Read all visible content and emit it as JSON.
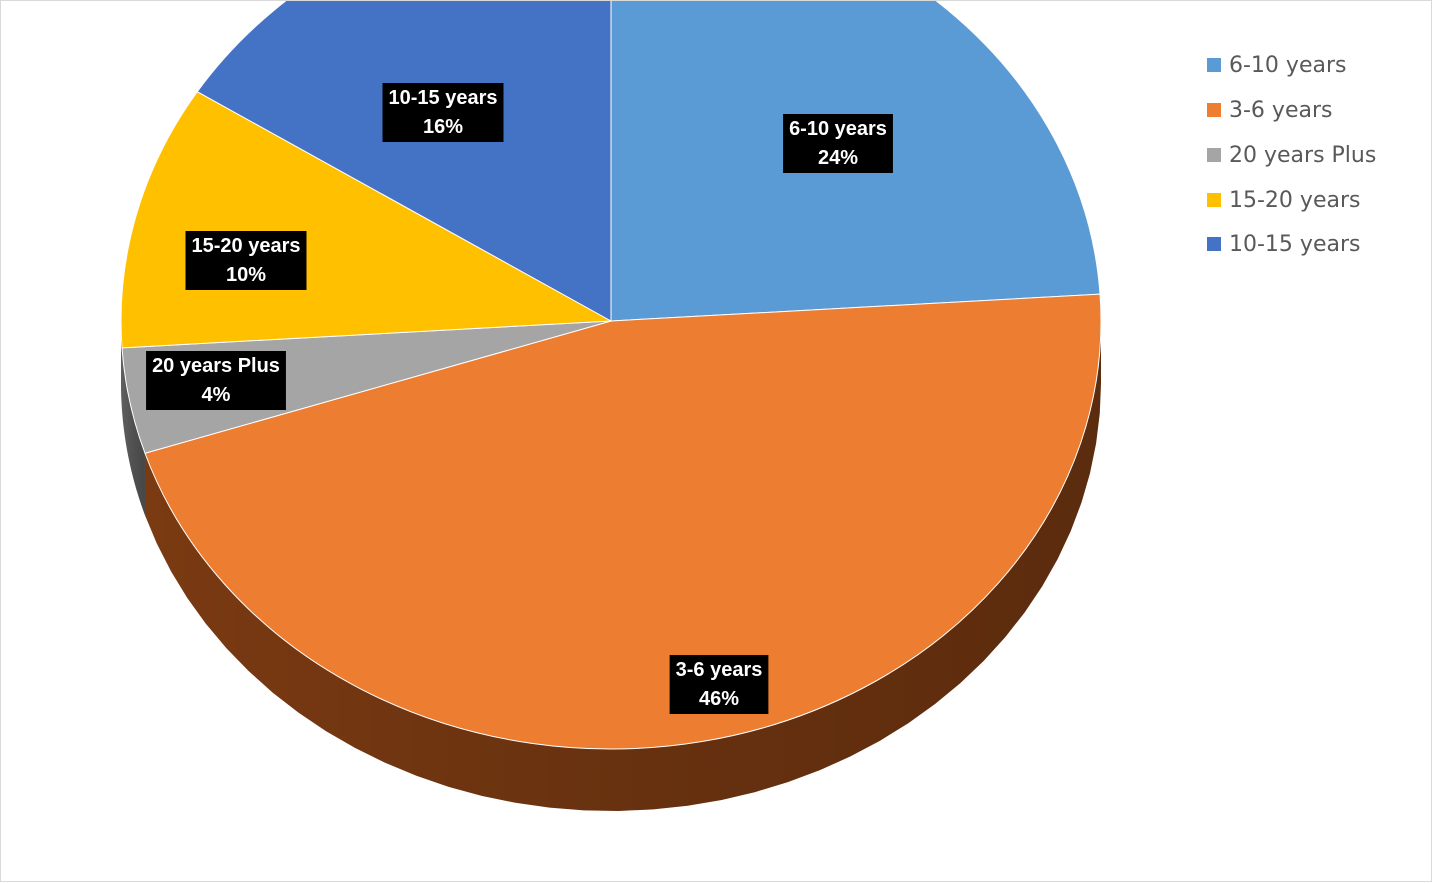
{
  "chart_data": {
    "type": "pie",
    "style": "3d",
    "legend_position": "top-right",
    "slices": [
      {
        "label": "6-10 years",
        "value": 24,
        "display": "24%",
        "color": "#5b9bd5",
        "side_color": "#2e5f8f"
      },
      {
        "label": "3-6 years",
        "value": 46,
        "display": "46%",
        "color": "#ed7d31",
        "side_color": "#7a3a12"
      },
      {
        "label": "20 years Plus",
        "value": 4,
        "display": "4%",
        "color": "#a5a5a5",
        "side_color": "#5e5e5e"
      },
      {
        "label": "15-20 years",
        "value": 10,
        "display": "10%",
        "color": "#ffc000",
        "side_color": "#8f6b00"
      },
      {
        "label": "10-15 years",
        "value": 16,
        "display": "16%",
        "color": "#4472c4",
        "side_color": "#213c70"
      }
    ],
    "legend": [
      "6-10 years",
      "3-6 years",
      "20 years Plus",
      "15-20 years",
      "10-15 years"
    ]
  }
}
